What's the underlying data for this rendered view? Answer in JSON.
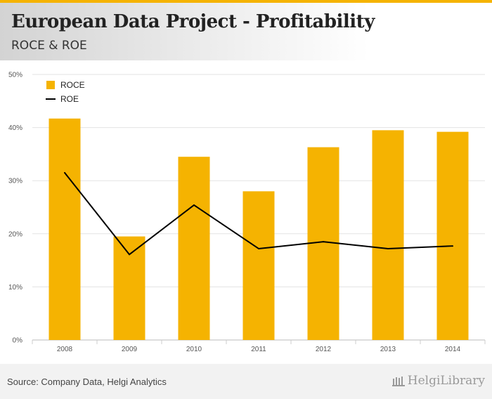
{
  "header": {
    "title": "European Data Project - Profitability",
    "subtitle": "ROCE & ROE"
  },
  "footer": {
    "source": "Source: Company Data, Helgi Analytics",
    "logo_text": "HelgiLibrary"
  },
  "colors": {
    "bar": "#f5b301",
    "line": "#000000",
    "accent": "#f5b301"
  },
  "chart_data": {
    "type": "bar",
    "title": "European Data Project - Profitability",
    "subtitle": "ROCE & ROE",
    "categories": [
      "2008",
      "2009",
      "2010",
      "2011",
      "2012",
      "2013",
      "2014"
    ],
    "series": [
      {
        "name": "ROCE",
        "kind": "bar",
        "values": [
          41.7,
          19.5,
          34.5,
          28.0,
          36.3,
          39.5,
          39.2
        ]
      },
      {
        "name": "ROE",
        "kind": "line",
        "values": [
          31.5,
          16.1,
          25.4,
          17.2,
          18.5,
          17.2,
          17.7
        ]
      }
    ],
    "ylim": [
      0,
      50
    ],
    "yticks": [
      "0%",
      "10%",
      "20%",
      "30%",
      "40%",
      "50%"
    ],
    "xlabel": "",
    "ylabel": "",
    "grid": true,
    "legend": "top-left"
  }
}
